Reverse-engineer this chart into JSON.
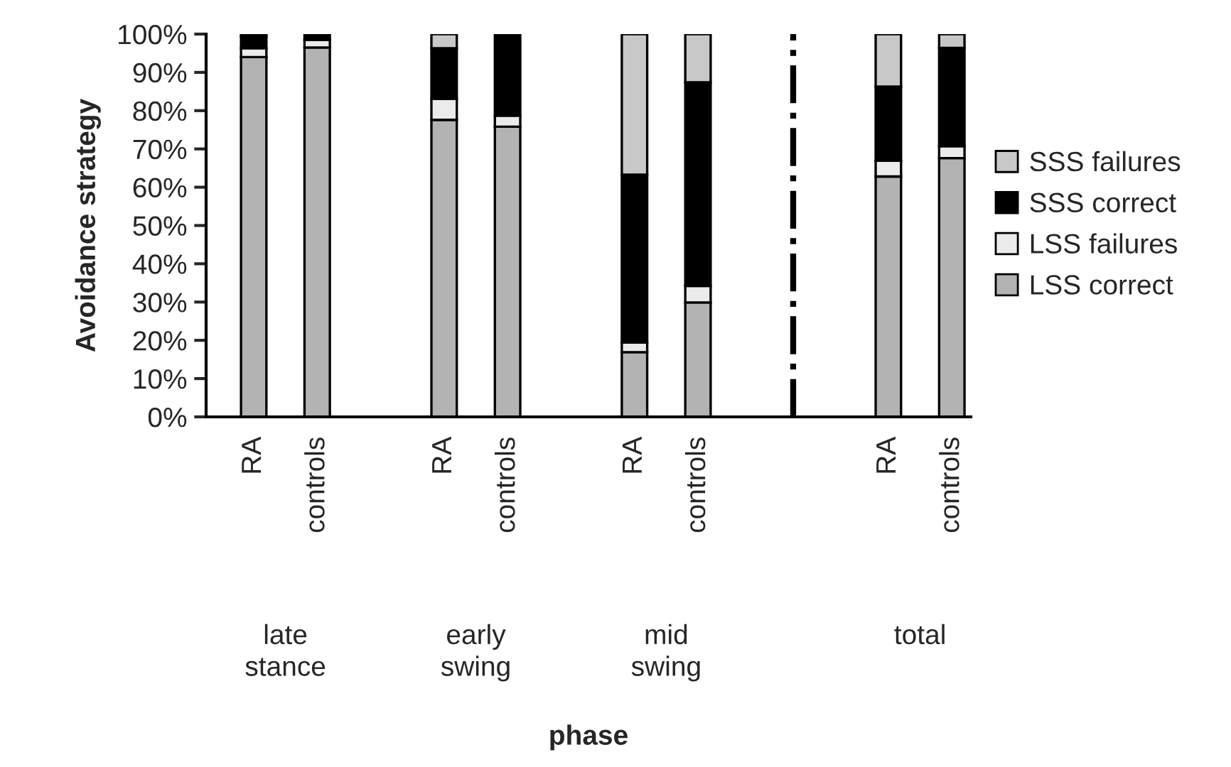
{
  "chart_data": {
    "type": "bar",
    "stacked": true,
    "ylabel": "Avoidance strategy",
    "categories": [
      "RA",
      "controls",
      null,
      "RA",
      "controls",
      null,
      "RA",
      "controls",
      null,
      null,
      "RA",
      "controls"
    ],
    "series": [
      {
        "name": "LSS correct",
        "color": "#b3b3b3",
        "values": [
          94,
          96.5,
          null,
          77.6,
          75.8,
          null,
          16.9,
          29.9,
          null,
          null,
          62.8,
          67.6
        ]
      },
      {
        "name": "LSS failures",
        "color": "#ebebeb",
        "values": [
          2.3,
          2,
          null,
          5.5,
          2.9,
          null,
          2.5,
          4.3,
          null,
          null,
          4.1,
          3.1
        ]
      },
      {
        "name": "SSS correct",
        "color": "#000000",
        "values": [
          3.1,
          1.5,
          null,
          13.2,
          21.3,
          null,
          43.9,
          53.2,
          null,
          null,
          19.4,
          25.7
        ]
      },
      {
        "name": "SSS failures",
        "color": "#c8c8c8",
        "values": [
          0.6,
          0,
          null,
          3.7,
          0,
          null,
          36.7,
          12.6,
          null,
          null,
          13.7,
          3.6
        ]
      }
    ],
    "ylim": [
      0,
      100
    ],
    "yticks": [
      {
        "value": 0,
        "label": "0%"
      },
      {
        "value": 10,
        "label": "10%"
      },
      {
        "value": 20,
        "label": "20%"
      },
      {
        "value": 30,
        "label": "30%"
      },
      {
        "value": 40,
        "label": "40%"
      },
      {
        "value": 50,
        "label": "50%"
      },
      {
        "value": 60,
        "label": "60%"
      },
      {
        "value": 70,
        "label": "70%"
      },
      {
        "value": 80,
        "label": "80%"
      },
      {
        "value": 90,
        "label": "90%"
      },
      {
        "value": 100,
        "label": "100%"
      }
    ],
    "annotations": [
      "late\nstance",
      "early\nswing",
      "mid\nswing",
      "total",
      "phase"
    ],
    "legend": "right",
    "grid": false
  }
}
